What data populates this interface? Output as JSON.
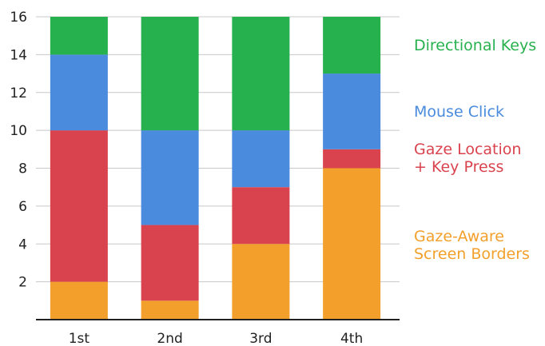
{
  "chart_data": {
    "type": "bar",
    "stacked": true,
    "categories": [
      "1st",
      "2nd",
      "3rd",
      "4th"
    ],
    "series": [
      {
        "name": "Gaze-Aware Screen Borders",
        "label_lines": [
          "Gaze-Aware",
          "Screen Borders"
        ],
        "color": "#F2A02B",
        "values": [
          2,
          1,
          4,
          8
        ]
      },
      {
        "name": "Gaze Location + Key Press",
        "label_lines": [
          "Gaze Location",
          "+ Key Press"
        ],
        "color": "#D9434E",
        "values": [
          8,
          4,
          3,
          1
        ]
      },
      {
        "name": "Mouse Click",
        "label_lines": [
          "Mouse Click"
        ],
        "color": "#4A8BDD",
        "values": [
          4,
          5,
          3,
          4
        ]
      },
      {
        "name": "Directional Keys",
        "label_lines": [
          "Directional Keys"
        ],
        "color": "#27B14E",
        "values": [
          2,
          6,
          6,
          3
        ]
      }
    ],
    "ylim": [
      0,
      16
    ],
    "yticks": [
      2,
      4,
      6,
      8,
      10,
      12,
      14,
      16
    ],
    "grid": true,
    "legend_position": "right",
    "title": "",
    "xlabel": "",
    "ylabel": ""
  }
}
